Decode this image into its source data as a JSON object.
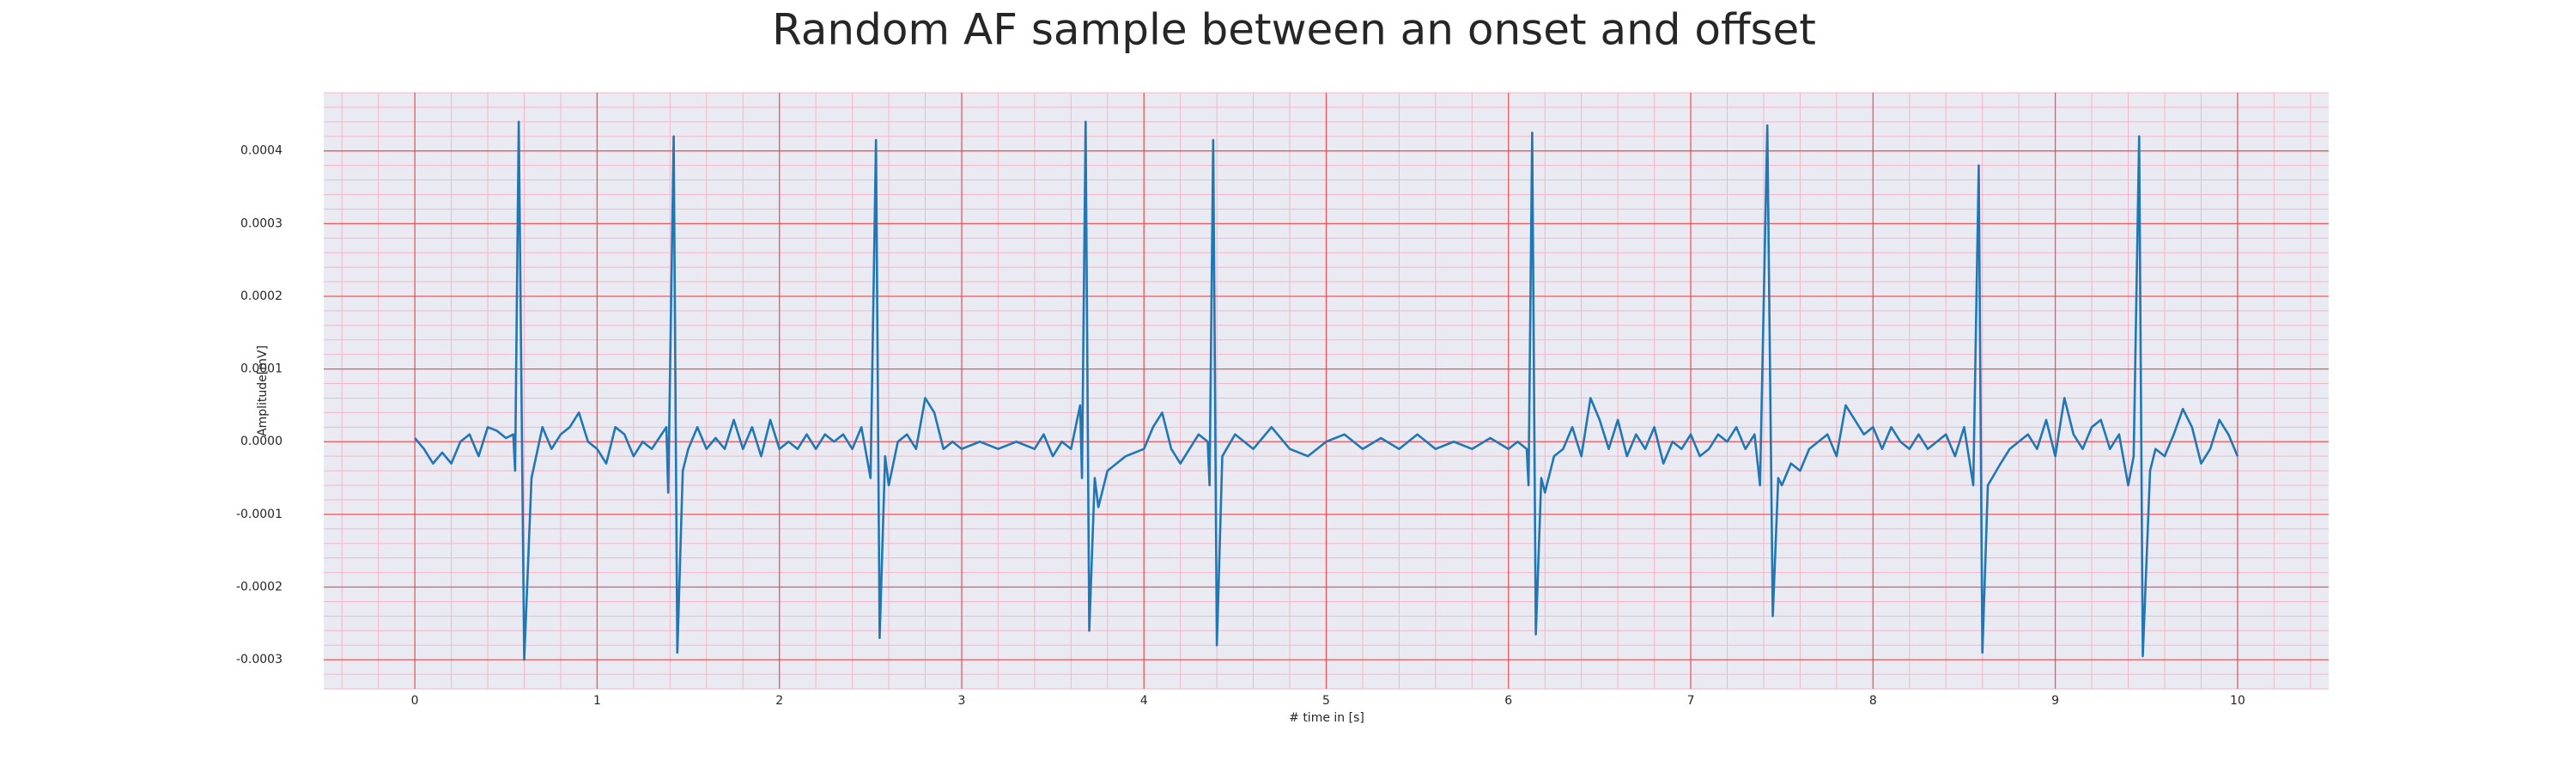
{
  "chart_data": {
    "type": "line",
    "title": "Random AF sample between an onset and offset",
    "x_label": "# time in [s]",
    "y_label": "Amplitude[mV]",
    "color": "#1f77b4",
    "grid": true,
    "minor_grid": true,
    "xlim": [
      -0.5,
      10.5
    ],
    "ylim": [
      -0.00034,
      0.00048
    ],
    "xticks": [
      0,
      1,
      2,
      3,
      4,
      5,
      6,
      7,
      8,
      9,
      10
    ],
    "yticks": [
      -0.0003,
      -0.0002,
      -0.0001,
      {
        "value": 0,
        "label": "0.0000"
      },
      0.0001,
      0.0002,
      0.0003,
      0.0004
    ],
    "x": [
      0.0,
      0.05,
      0.1,
      0.15,
      0.2,
      0.25,
      0.3,
      0.35,
      0.4,
      0.45,
      0.5,
      0.54,
      0.55,
      0.57,
      0.6,
      0.64,
      0.7,
      0.75,
      0.8,
      0.85,
      0.9,
      0.95,
      1.0,
      1.05,
      1.1,
      1.15,
      1.2,
      1.25,
      1.3,
      1.38,
      1.39,
      1.42,
      1.44,
      1.47,
      1.5,
      1.55,
      1.6,
      1.65,
      1.7,
      1.75,
      1.8,
      1.85,
      1.9,
      1.95,
      2.0,
      2.05,
      2.1,
      2.15,
      2.2,
      2.25,
      2.3,
      2.35,
      2.4,
      2.45,
      2.5,
      2.53,
      2.55,
      2.58,
      2.6,
      2.65,
      2.7,
      2.75,
      2.8,
      2.85,
      2.9,
      2.95,
      3.0,
      3.1,
      3.2,
      3.3,
      3.4,
      3.45,
      3.5,
      3.55,
      3.6,
      3.65,
      3.66,
      3.68,
      3.7,
      3.73,
      3.75,
      3.8,
      3.9,
      4.0,
      4.05,
      4.1,
      4.15,
      4.2,
      4.25,
      4.3,
      4.35,
      4.36,
      4.38,
      4.4,
      4.43,
      4.5,
      4.6,
      4.7,
      4.8,
      4.9,
      5.0,
      5.1,
      5.2,
      5.3,
      5.4,
      5.5,
      5.6,
      5.7,
      5.8,
      5.9,
      6.0,
      6.05,
      6.1,
      6.11,
      6.13,
      6.15,
      6.18,
      6.2,
      6.25,
      6.3,
      6.35,
      6.4,
      6.45,
      6.5,
      6.55,
      6.6,
      6.65,
      6.7,
      6.75,
      6.8,
      6.85,
      6.9,
      6.95,
      7.0,
      7.05,
      7.1,
      7.15,
      7.2,
      7.25,
      7.3,
      7.35,
      7.38,
      7.42,
      7.45,
      7.48,
      7.5,
      7.55,
      7.6,
      7.65,
      7.7,
      7.75,
      7.8,
      7.85,
      7.9,
      7.95,
      8.0,
      8.05,
      8.1,
      8.15,
      8.2,
      8.25,
      8.3,
      8.4,
      8.45,
      8.5,
      8.55,
      8.58,
      8.6,
      8.63,
      8.7,
      8.75,
      8.8,
      8.85,
      8.9,
      8.95,
      9.0,
      9.05,
      9.1,
      9.15,
      9.2,
      9.25,
      9.3,
      9.35,
      9.4,
      9.43,
      9.46,
      9.48,
      9.52,
      9.55,
      9.6,
      9.65,
      9.7,
      9.75,
      9.8,
      9.85,
      9.9,
      9.95,
      10.0
    ],
    "values": [
      5e-06,
      -1e-05,
      -3e-05,
      -1.5e-05,
      -3e-05,
      0,
      1e-05,
      -2e-05,
      2e-05,
      1.5e-05,
      5e-06,
      1e-05,
      -4e-05,
      0.00044,
      -0.0003,
      -5e-05,
      2e-05,
      -1e-05,
      1e-05,
      2e-05,
      4e-05,
      0,
      -1e-05,
      -3e-05,
      2e-05,
      1e-05,
      -2e-05,
      0,
      -1e-05,
      2e-05,
      -7e-05,
      0.00042,
      -0.00029,
      -4e-05,
      -1e-05,
      2e-05,
      -1e-05,
      5e-06,
      -1e-05,
      3e-05,
      -1e-05,
      2e-05,
      -2e-05,
      3e-05,
      -1e-05,
      0,
      -1e-05,
      1e-05,
      -1e-05,
      1e-05,
      0,
      1e-05,
      -1e-05,
      2e-05,
      -5e-05,
      0.000415,
      -0.00027,
      -2e-05,
      -6e-05,
      0,
      1e-05,
      -1e-05,
      6e-05,
      4e-05,
      -1e-05,
      0,
      -1e-05,
      0,
      -1e-05,
      0,
      -1e-05,
      1e-05,
      -2e-05,
      0,
      -1e-05,
      5e-05,
      -5e-05,
      0.00044,
      -0.00026,
      -5e-05,
      -9e-05,
      -4e-05,
      -2e-05,
      -1e-05,
      2e-05,
      4e-05,
      -1e-05,
      -3e-05,
      -1e-05,
      1e-05,
      0,
      -6e-05,
      0.000415,
      -0.00028,
      -2e-05,
      1e-05,
      -1e-05,
      2e-05,
      -1e-05,
      -2e-05,
      0,
      1e-05,
      -1e-05,
      5e-06,
      -1e-05,
      1e-05,
      -1e-05,
      0,
      -1e-05,
      5e-06,
      -1e-05,
      0,
      -1e-05,
      -6e-05,
      0.000425,
      -0.000265,
      -5e-05,
      -7e-05,
      -2e-05,
      -1e-05,
      2e-05,
      -2e-05,
      6e-05,
      3e-05,
      -1e-05,
      3e-05,
      -2e-05,
      1e-05,
      -1e-05,
      2e-05,
      -3e-05,
      0,
      -1e-05,
      1e-05,
      -2e-05,
      -1e-05,
      1e-05,
      0,
      2e-05,
      -1e-05,
      1e-05,
      -6e-05,
      0.000435,
      -0.00024,
      -5e-05,
      -6e-05,
      -3e-05,
      -4e-05,
      -1e-05,
      0,
      1e-05,
      -2e-05,
      5e-05,
      3e-05,
      1e-05,
      2e-05,
      -1e-05,
      2e-05,
      0,
      -1e-05,
      1e-05,
      -1e-05,
      1e-05,
      -2e-05,
      2e-05,
      -6e-05,
      0.00038,
      -0.00029,
      -6e-05,
      -3e-05,
      -1e-05,
      0,
      1e-05,
      -1e-05,
      3e-05,
      -2e-05,
      6e-05,
      1e-05,
      -1e-05,
      2e-05,
      3e-05,
      -1e-05,
      1e-05,
      -6e-05,
      -2e-05,
      0.00042,
      -0.000295,
      -4e-05,
      -1e-05,
      -2e-05,
      1e-05,
      4.5e-05,
      2e-05,
      -3e-05,
      -1e-05,
      3e-05,
      1e-05,
      -2e-05
    ]
  }
}
